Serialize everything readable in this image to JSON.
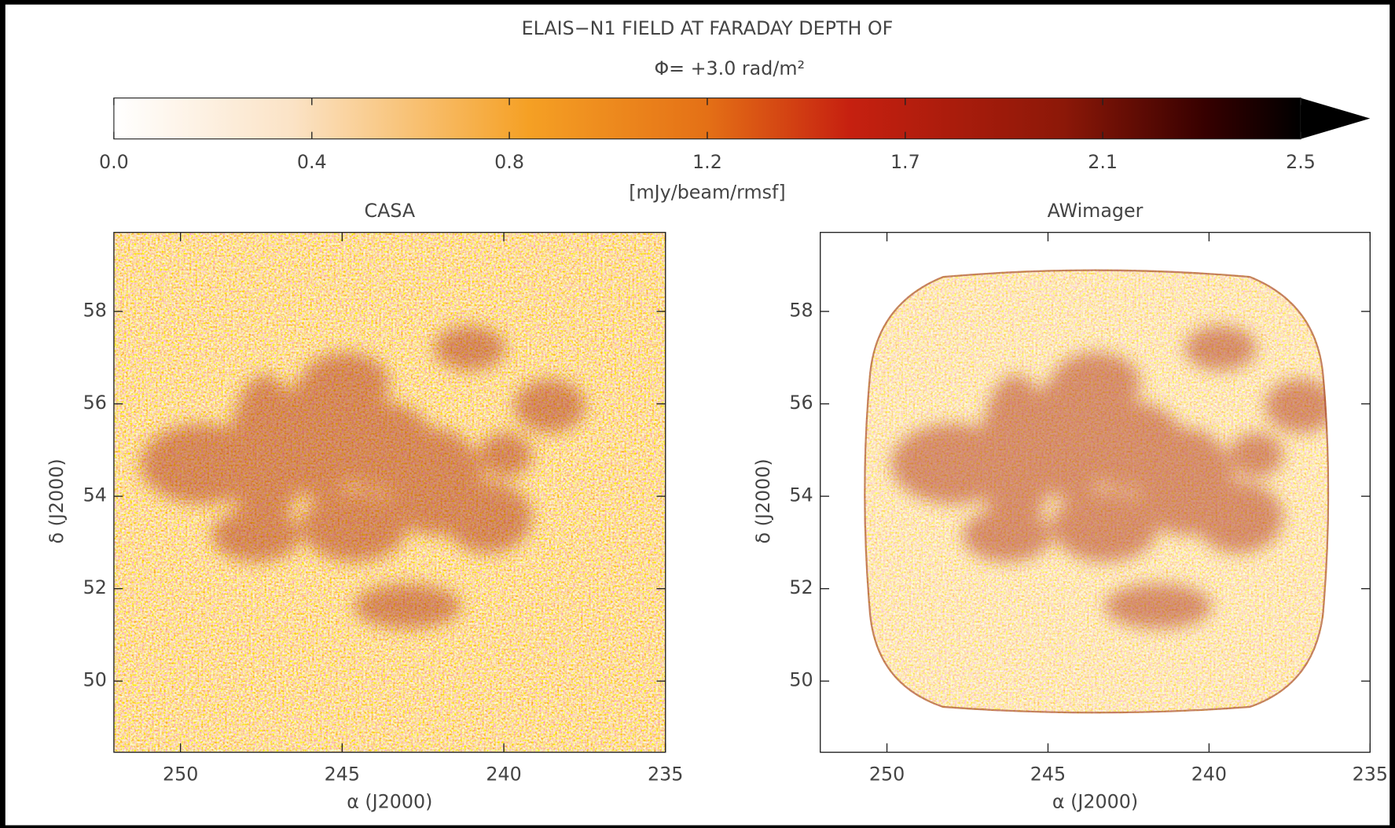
{
  "chart_data": [
    {
      "type": "colorbar",
      "title": "ELAIS−N1 FIELD AT FARADAY DEPTH OF",
      "subtitle": "Φ= +3.0 rad/m²",
      "label": "[mJy/beam/rmsf]",
      "xlim": [
        0,
        2.5
      ],
      "extend": "max",
      "xticks": [
        {
          "value": 0,
          "label": "0.0"
        },
        {
          "value": 0.417,
          "label": "0.4"
        },
        {
          "value": 0.833,
          "label": "0.8"
        },
        {
          "value": 1.25,
          "label": "1.2"
        },
        {
          "value": 1.667,
          "label": "1.7"
        },
        {
          "value": 2.083,
          "label": "2.1"
        },
        2.5
      ]
    },
    {
      "type": "image",
      "title": "CASA",
      "xlabel": "α (J2000)",
      "ylabel": "δ (J2000)",
      "xlim": [
        252.06,
        235
      ],
      "ylim": [
        48.46,
        59.71
      ],
      "xticks": [
        250,
        245,
        240,
        235
      ],
      "yticks": [
        50,
        52,
        54,
        56,
        58
      ]
    },
    {
      "type": "image",
      "title": "AWimager",
      "xlabel": "α (J2000)",
      "ylabel": "δ (J2000)",
      "xlim": [
        252.07,
        235
      ],
      "ylim": [
        48.46,
        59.71
      ],
      "xticks": [
        250,
        245,
        240,
        235
      ],
      "yticks": [
        50,
        52,
        54,
        56,
        58
      ]
    }
  ]
}
